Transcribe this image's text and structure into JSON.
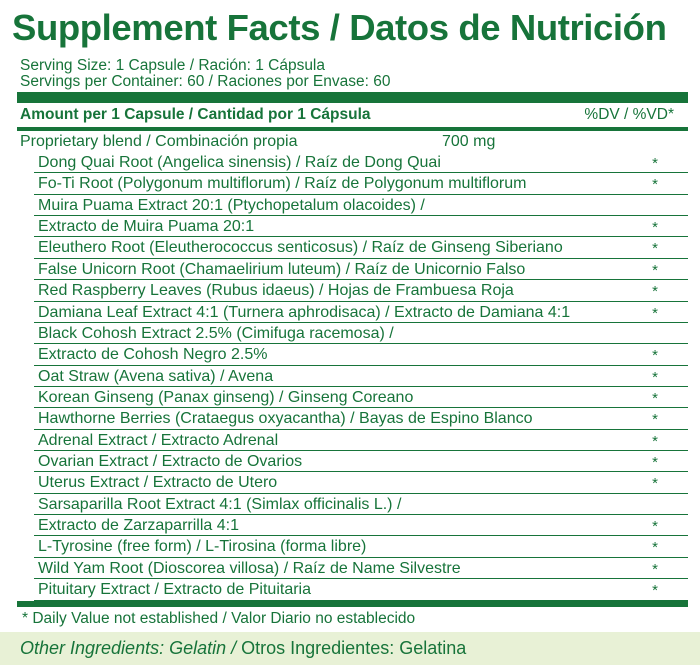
{
  "header": {
    "title": "Supplement Facts / Datos de Nutrición",
    "serving_size": "Serving Size: 1 Capsule / Ración: 1 Cápsula",
    "servings_per_container": "Servings per Container: 60 / Raciones por Envase: 60"
  },
  "table": {
    "amount_header": "Amount per 1 Capsule / Cantidad por 1 Cápsula",
    "dv_header": "%DV / %VD*",
    "blend_name": "Proprietary blend / Combinación propia",
    "blend_amount": "700 mg",
    "ingredients": [
      {
        "name": "Dong Quai Root (Angelica sinensis) / Raíz de Dong Quai",
        "dv": "*"
      },
      {
        "name": "Fo-Ti Root (Polygonum multiflorum) / Raíz de Polygonum multiflorum",
        "dv": "*"
      },
      {
        "name": "Muira Puama Extract 20:1 (Ptychopetalum olacoides) /",
        "dv": ""
      },
      {
        "name": "Extracto de Muira Puama 20:1",
        "dv": "*"
      },
      {
        "name": "Eleuthero Root (Eleutherococcus senticosus) / Raíz de Ginseng Siberiano",
        "dv": "*"
      },
      {
        "name": "False Unicorn Root (Chamaelirium luteum) / Raíz de Unicornio Falso",
        "dv": "*"
      },
      {
        "name": "Red Raspberry Leaves (Rubus idaeus) / Hojas de Frambuesa Roja",
        "dv": "*"
      },
      {
        "name": "Damiana Leaf Extract 4:1 (Turnera aphrodisaca) / Extracto de Damiana 4:1",
        "dv": "*"
      },
      {
        "name": "Black Cohosh Extract 2.5% (Cimifuga racemosa) /",
        "dv": ""
      },
      {
        "name": "Extracto de Cohosh Negro 2.5%",
        "dv": "*"
      },
      {
        "name": "Oat Straw (Avena sativa) / Avena",
        "dv": "*"
      },
      {
        "name": "Korean Ginseng (Panax ginseng) / Ginseng Coreano",
        "dv": "*"
      },
      {
        "name": "Hawthorne Berries (Crataegus oxyacantha) / Bayas de Espino Blanco",
        "dv": "*"
      },
      {
        "name": "Adrenal Extract / Extracto Adrenal",
        "dv": "*"
      },
      {
        "name": "Ovarian Extract  / Extracto de Ovarios",
        "dv": "*"
      },
      {
        "name": "Uterus Extract / Extracto de Utero",
        "dv": "*"
      },
      {
        "name": "Sarsaparilla Root Extract 4:1 (Simlax officinalis L.) /",
        "dv": ""
      },
      {
        "name": "Extracto de Zarzaparrilla 4:1",
        "dv": "*"
      },
      {
        "name": "L-Tyrosine (free form) / L-Tirosina (forma libre)",
        "dv": "*"
      },
      {
        "name": "Wild Yam Root (Dioscorea villosa) / Raíz de Name Silvestre",
        "dv": "*"
      },
      {
        "name": "Pituitary Extract / Extracto de Pituitaria",
        "dv": "*"
      }
    ]
  },
  "footer": {
    "dv_note": "* Daily Value not established / Valor Diario no establecido",
    "other_ingredients_label": "Other Ingredients: Gelatin /",
    "other_ingredients_es": " Otros Ingredientes: Gelatina"
  },
  "colors": {
    "text_green": "#17743a",
    "page_background": "#e8f1d6",
    "panel_background": "#ffffff"
  }
}
